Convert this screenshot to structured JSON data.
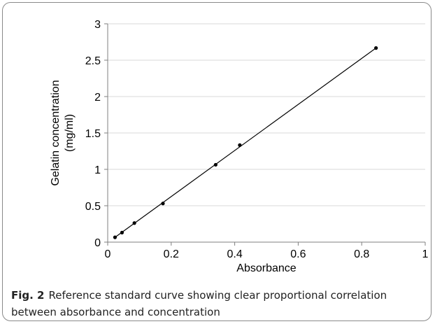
{
  "chart_data": {
    "type": "scatter",
    "xlabel": "Absorbance",
    "ylabel_lines": [
      "Gelatin concentration",
      "(mg/ml)"
    ],
    "xlim": [
      0,
      1
    ],
    "ylim": [
      0,
      3
    ],
    "x_ticks": [
      0,
      0.2,
      0.4,
      0.6,
      0.8,
      1
    ],
    "x_tick_labels": [
      "0",
      "0.2",
      "0.4",
      "0.6",
      "0.8",
      "1"
    ],
    "y_ticks": [
      0,
      0.5,
      1,
      1.5,
      2,
      2.5,
      3
    ],
    "y_tick_labels": [
      "0",
      "0.5",
      "1",
      "1.5",
      "2",
      "2.5",
      "3"
    ],
    "grid": "horizontal",
    "series": [
      {
        "x": [
          0.023,
          0.045,
          0.084,
          0.174,
          0.34,
          0.416,
          0.845
        ],
        "y": [
          0.066,
          0.131,
          0.262,
          0.531,
          1.063,
          1.333,
          2.667
        ]
      }
    ],
    "trendline": {
      "x": [
        0.023,
        0.845
      ],
      "y": [
        0.066,
        2.667
      ]
    }
  },
  "caption": {
    "label": "Fig. 2",
    "text": "Reference standard curve showing clear proportional correlation between absorbance and concentration"
  },
  "colors": {
    "grid": "#d9d9d9",
    "axis": "#7f7f7f",
    "line": "#000000",
    "marker": "#000000",
    "frame": "#8a8a8a"
  }
}
